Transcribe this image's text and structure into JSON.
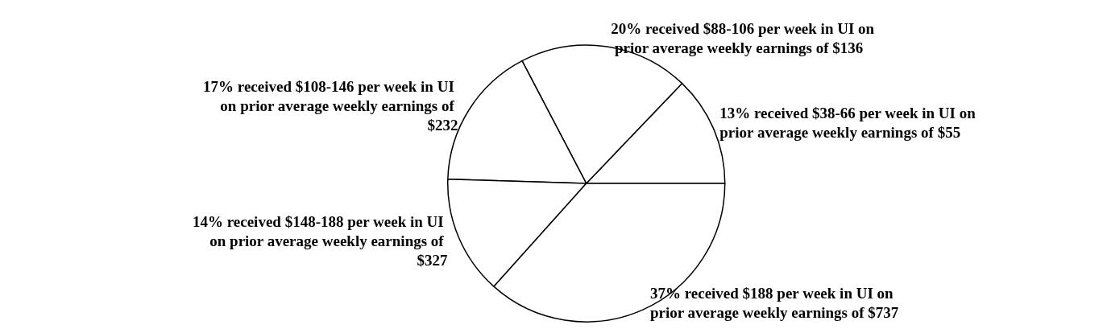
{
  "chart_data": {
    "type": "pie",
    "categories": [
      "13% received $38-66 per week in UI on prior average weekly earnings of $55",
      "20% received $88-106 per week in UI on prior average weekly earnings of $136",
      "17% received $108-146 per week in UI on prior average weekly earnings of $232",
      "14% received $148-188 per week in UI on prior average weekly earnings of $327",
      "37% received $188 per week in UI on prior average weekly earnings of $737"
    ],
    "values": [
      13,
      20,
      17,
      14,
      37
    ],
    "colors": [
      "#ffffff",
      "#ffffff",
      "#ffffff",
      "#ffffff",
      "#ffffff"
    ]
  }
}
